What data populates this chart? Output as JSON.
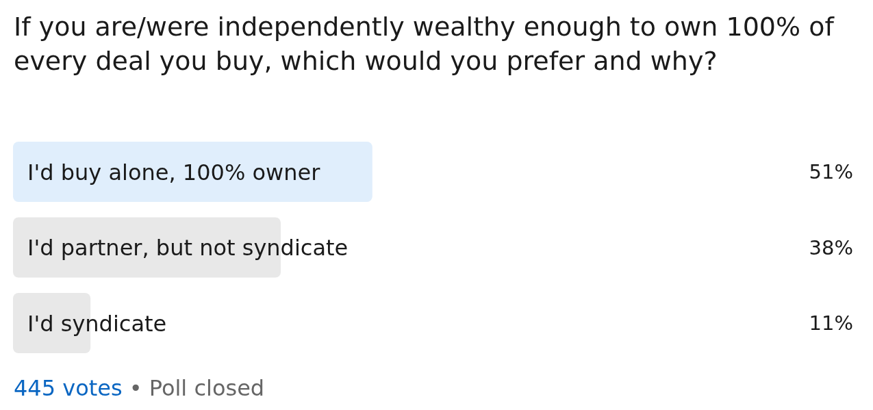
{
  "chart_data": {
    "type": "bar",
    "orientation": "horizontal",
    "title": "If you are/were independently wealthy enough to own 100% of every deal you buy, which would you prefer and why?",
    "categories": [
      "I'd buy alone, 100% owner",
      "I'd partner, but not syndicate",
      "I'd syndicate"
    ],
    "values": [
      51,
      38,
      11
    ],
    "value_labels": [
      "51%",
      "38%",
      "11%"
    ],
    "colors": [
      "#e0eefc",
      "#e8e8e8",
      "#e8e8e8"
    ],
    "annotations": [
      "445 votes",
      "• Poll closed"
    ]
  }
}
